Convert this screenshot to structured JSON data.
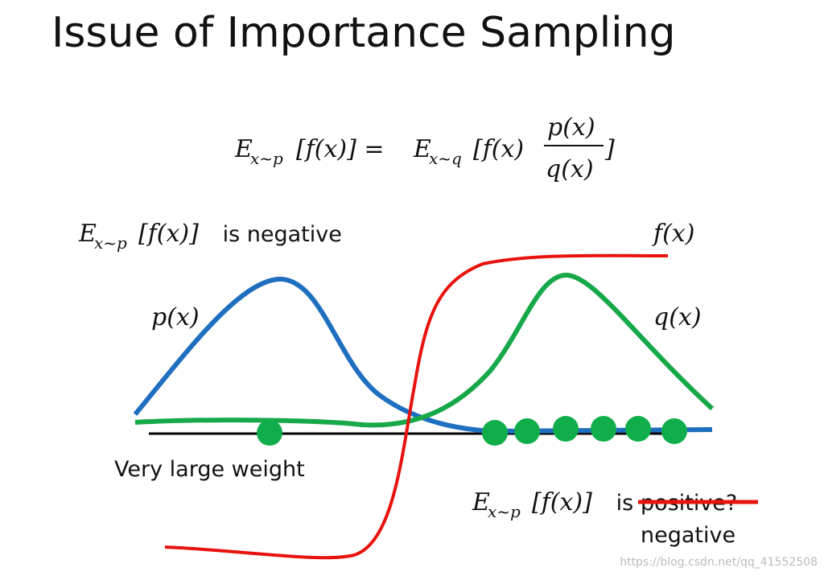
{
  "title": "Issue of Importance Sampling",
  "formula": {
    "lhs_e": "E",
    "lhs_sub": "x~p",
    "lhs_rest": "[f(x)] = ",
    "rhs_e": "E",
    "rhs_sub": "x~q",
    "rhs_mid": "[f(x)",
    "numerator": "p(x)",
    "denominator": "q(x)",
    "rhs_end": "]"
  },
  "negative_label": {
    "e": "E",
    "sub": "x~p",
    "rest": "[f(x)]",
    "text": " is negative"
  },
  "curve_labels": {
    "f": "f(x)",
    "p": "p(x)",
    "q": "q(x)"
  },
  "weight_label": "Very large weight",
  "positive_label": {
    "e": "E",
    "sub": "x~p",
    "rest": "[f(x)]",
    "is": " is ",
    "struck": "positive?",
    "correction": "negative"
  },
  "watermark": "https://blog.csdn.net/qq_41552508"
}
